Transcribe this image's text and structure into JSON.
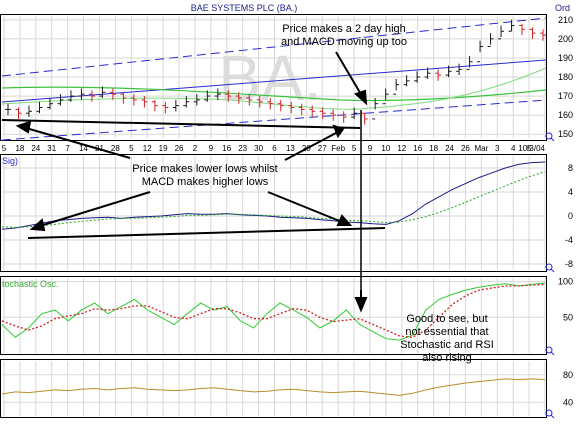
{
  "header": {
    "title": "BAE SYSTEMS PLC (BA.)",
    "right_label": "Ord",
    "watermark": "BA."
  },
  "panels": {
    "price": {
      "y_ticks": [
        "210",
        "200",
        "190",
        "180",
        "170",
        "160",
        "150"
      ],
      "x_ticks": [
        "5",
        "18",
        "24",
        "31",
        "7",
        "14",
        "21",
        "28",
        "5",
        "12",
        "19",
        "26",
        "2",
        "9",
        "16",
        "23",
        "30",
        "6",
        "13",
        "20",
        "27",
        "Feb",
        "5",
        "9",
        "10",
        "12",
        "16",
        "18",
        "24",
        "26",
        "Mar",
        "3",
        "4",
        "5",
        "10/3/04"
      ]
    },
    "macd": {
      "label": "Sig)",
      "y_ticks": [
        "8",
        "4",
        "0",
        "-4",
        "-8"
      ]
    },
    "stochastic": {
      "label": "tochastic Osc.",
      "y_ticks": [
        "100",
        "50"
      ]
    },
    "rsi": {
      "y_ticks": [
        "80",
        "40"
      ]
    }
  },
  "annotations": {
    "top": "Price makes a 2 day high\nand MACD moving up too",
    "middle": "Price makes lower lows whilst\nMACD makes higher lows",
    "right": "Good to see, but\nnot essential that\nStochastic and RSI\nalso rising"
  },
  "colors": {
    "grid": "#d7d7d7",
    "up_bar": "#1a1a1a",
    "down_bar": "#cc2222",
    "channel": "#2a2ad0",
    "ma_green": "#3cc33c",
    "macd_line": "#1b1b8a",
    "signal_line": "#22aa22",
    "stoch_k": "#33cc33",
    "stoch_d": "#cc2222",
    "rsi_line": "#b88d2a",
    "annotation": "#000000",
    "title": "#1b1b8a"
  },
  "chart_data": [
    {
      "type": "bar",
      "panel": "price",
      "ylim": [
        148,
        212
      ],
      "series": [
        {
          "values": [
            163,
            161,
            162,
            164,
            166,
            168,
            170,
            171,
            170,
            172,
            171,
            169,
            168,
            167,
            165,
            164,
            165,
            167,
            168,
            170,
            171,
            170,
            169,
            168,
            167,
            166,
            165,
            164,
            163,
            162,
            161,
            160,
            159,
            161,
            158,
            166,
            171,
            176,
            178,
            180,
            182,
            181,
            183,
            184,
            188,
            196,
            200,
            204,
            207,
            205,
            203,
            202
          ]
        }
      ]
    },
    {
      "type": "line",
      "panel": "macd",
      "ylim": [
        -9,
        10
      ],
      "series": [
        {
          "values": [
            -2.2,
            -2.0,
            -1.6,
            -1.2,
            -0.8,
            -0.6,
            -0.4,
            -0.3,
            -0.2,
            -0.4,
            -0.2,
            -0.1,
            0,
            0.2,
            0.4,
            0.3,
            0.3,
            0.4,
            0.2,
            0.1,
            0,
            -0.2,
            -0.3,
            -0.4,
            -0.6,
            -0.8,
            -1.0,
            -1.1,
            -1.3,
            -1.4,
            -0.8,
            0.4,
            2,
            3.2,
            4.4,
            5.4,
            6.4,
            7.2,
            8.0,
            8.6,
            8.9,
            9.0
          ]
        },
        {
          "values": [
            -1.8,
            -1.9,
            -1.8,
            -1.6,
            -1.4,
            -1.1,
            -0.9,
            -0.7,
            -0.5,
            -0.4,
            -0.4,
            -0.3,
            -0.2,
            -0.1,
            0.1,
            0.1,
            0.2,
            0.3,
            0.3,
            0.2,
            0.1,
            0,
            -0.1,
            -0.2,
            -0.4,
            -0.5,
            -0.7,
            -0.8,
            -0.9,
            -1.1,
            -1.0,
            -0.6,
            -0.1,
            0.6,
            1.4,
            2.3,
            3.2,
            4.1,
            5.0,
            5.9,
            6.7,
            7.4
          ]
        }
      ]
    },
    {
      "type": "line",
      "panel": "stochastic",
      "ylim": [
        0,
        105
      ],
      "series": [
        {
          "values": [
            40,
            22,
            35,
            55,
            60,
            45,
            60,
            70,
            55,
            65,
            75,
            60,
            50,
            40,
            55,
            70,
            60,
            65,
            45,
            35,
            55,
            70,
            60,
            50,
            35,
            45,
            60,
            40,
            30,
            20,
            18,
            25,
            60,
            75,
            82,
            88,
            92,
            95,
            97,
            94,
            96,
            98
          ]
        },
        {
          "values": [
            45,
            38,
            32,
            38,
            48,
            52,
            55,
            62,
            60,
            62,
            66,
            66,
            58,
            50,
            48,
            55,
            62,
            62,
            56,
            48,
            48,
            55,
            62,
            60,
            50,
            44,
            46,
            48,
            40,
            32,
            24,
            22,
            32,
            50,
            68,
            80,
            88,
            91,
            94,
            94,
            95,
            96
          ]
        }
      ]
    },
    {
      "type": "line",
      "panel": "rsi",
      "ylim": [
        20,
        100
      ],
      "series": [
        {
          "values": [
            52,
            55,
            54,
            56,
            58,
            57,
            59,
            60,
            58,
            60,
            61,
            59,
            58,
            57,
            58,
            60,
            61,
            59,
            57,
            55,
            56,
            58,
            59,
            57,
            55,
            54,
            55,
            56,
            54,
            52,
            50,
            53,
            58,
            62,
            65,
            68,
            70,
            72,
            74,
            73,
            74,
            73
          ]
        }
      ]
    }
  ]
}
